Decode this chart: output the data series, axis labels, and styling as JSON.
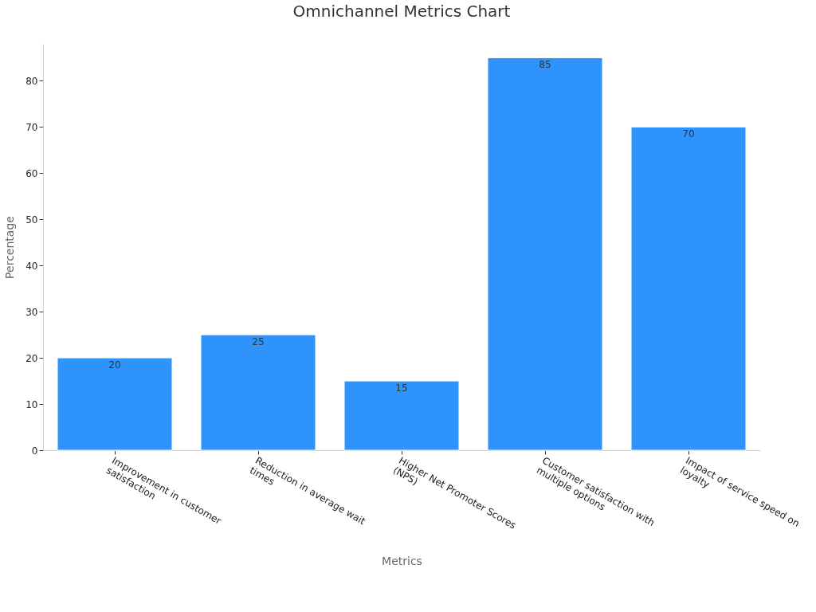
{
  "chart_data": {
    "type": "bar",
    "title": "Omnichannel Metrics Chart",
    "xlabel": "Metrics",
    "ylabel": "Percentage",
    "categories": [
      "Improvement in customer satisfaction",
      "Reduction in average wait times",
      "Higher Net Promoter Scores (NPS)",
      "Customer satisfaction with multiple options",
      "Impact of service speed on loyalty"
    ],
    "values": [
      20,
      25,
      15,
      85,
      70
    ],
    "color": "#2e93fa",
    "ylim": [
      0,
      88
    ],
    "yticks": [
      0,
      10,
      20,
      30,
      40,
      50,
      60,
      70,
      80
    ],
    "grid": false,
    "data_labels": true
  }
}
